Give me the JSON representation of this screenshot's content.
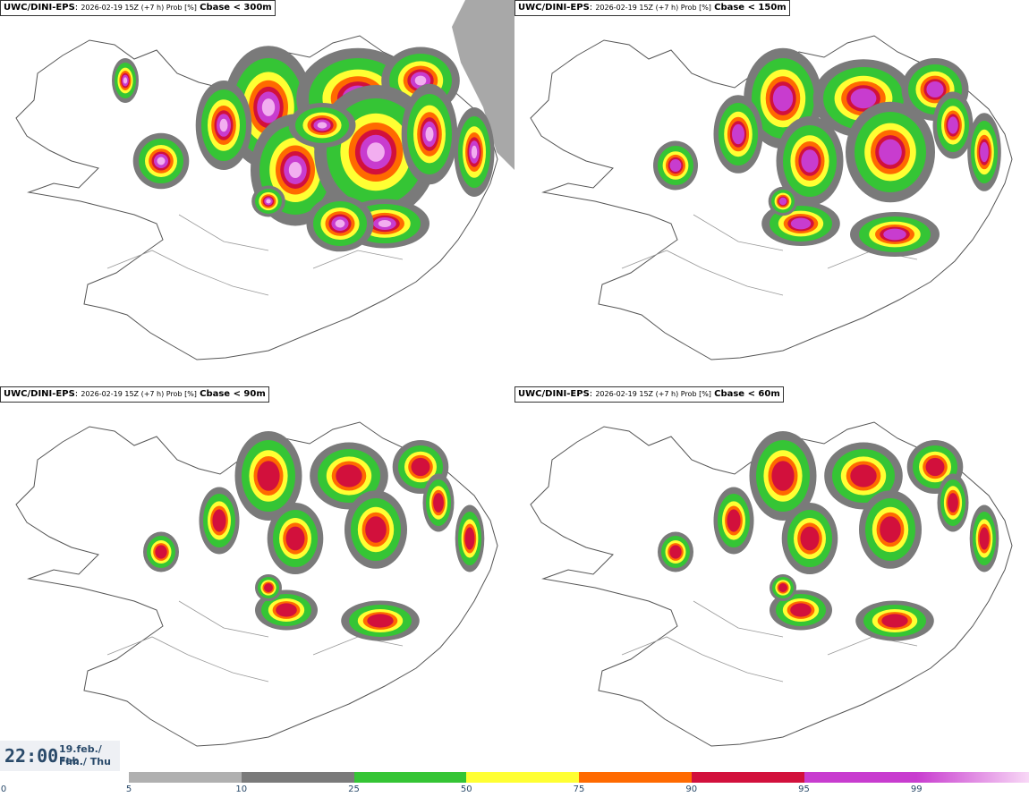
{
  "panels": [
    {
      "model": "UWC/DINI-EPS",
      "meta": "2026-02-19 15Z (+7 h) Prob [%]",
      "threshold": "Cbase < 300m",
      "intensity": 4
    },
    {
      "model": "UWC/DINI-EPS",
      "meta": "2026-02-19 15Z (+7 h) Prob [%]",
      "threshold": "Cbase < 150m",
      "intensity": 3
    },
    {
      "model": "UWC/DINI-EPS",
      "meta": "2026-02-19 15Z (+7 h) Prob [%]",
      "threshold": "Cbase < 90m",
      "intensity": 2
    },
    {
      "model": "UWC/DINI-EPS",
      "meta": "2026-02-19 15Z (+7 h) Prob [%]",
      "threshold": "Cbase < 60m",
      "intensity": 2
    }
  ],
  "clock": {
    "time": "22:00",
    "date_line": "19.feb./ Feb",
    "day_line": "Fim./ Thu"
  },
  "legend": {
    "colors": [
      "#b0b0b0",
      "#7a7a7a",
      "#35c535",
      "#ffff33",
      "#ff6a00",
      "#d2103c",
      "#c83ccf",
      "#f2aef0"
    ],
    "ticks": [
      "0",
      "5",
      "10",
      "25",
      "50",
      "75",
      "90",
      "95",
      "99"
    ]
  }
}
